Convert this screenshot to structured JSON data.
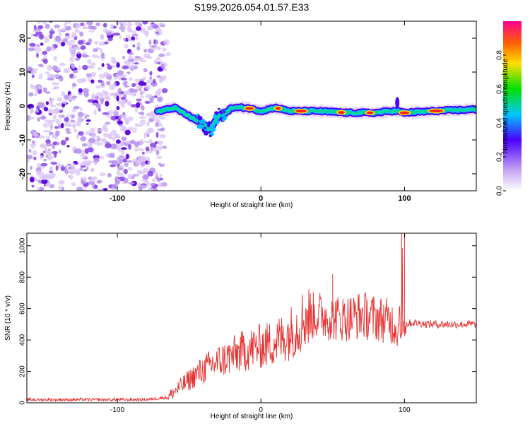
{
  "chart_data": [
    {
      "type": "heatmap",
      "title": "S199.2026.054.01.57.E33",
      "xlabel": "Height of straight line (km)",
      "ylabel": "Frequency (Hz)",
      "xlim": [
        -163,
        150
      ],
      "ylim": [
        -25,
        25
      ],
      "xticks": [
        -100,
        0,
        100
      ],
      "yticks": [
        -20,
        -10,
        0,
        10,
        20
      ],
      "noise_region_x": [
        -163,
        -70
      ],
      "ridge": {
        "x": [
          -70,
          -60,
          -50,
          -40,
          -35,
          -30,
          -25,
          -20,
          -10,
          0,
          10,
          20,
          40,
          60,
          80,
          90,
          95,
          100,
          120,
          150
        ],
        "freq": [
          -1.5,
          -0.5,
          -3,
          -5.5,
          -7,
          -3,
          -2,
          -0.5,
          -0.5,
          -1.5,
          -0.5,
          -1.5,
          -1.5,
          -2,
          -2,
          -1.5,
          -1.5,
          -2,
          -1.5,
          -1
        ]
      },
      "colorbar": {
        "label": "Normalized spectral amplitude",
        "ticks": [
          "0.0",
          "0.2",
          "0.4",
          "0.6",
          "0.8"
        ],
        "range": [
          0,
          1
        ]
      }
    },
    {
      "type": "line",
      "xlabel": "Height of straight line (km)",
      "ylabel": "SNR (10 * v/v)",
      "xlim": [
        -163,
        150
      ],
      "ylim": [
        0,
        1080
      ],
      "xticks": [
        -100,
        0,
        100
      ],
      "yticks": [
        0,
        200,
        400,
        600,
        800,
        1000
      ],
      "color": "#e83030",
      "series": [
        {
          "name": "SNR",
          "x": [
            -163,
            -140,
            -120,
            -100,
            -80,
            -65,
            -55,
            -45,
            -35,
            -25,
            -15,
            -5,
            5,
            15,
            25,
            30,
            40,
            50,
            60,
            70,
            80,
            90,
            95,
            97,
            100,
            105,
            120,
            140,
            150
          ],
          "y": [
            20,
            20,
            20,
            20,
            20,
            35,
            110,
            180,
            240,
            280,
            320,
            350,
            370,
            410,
            480,
            540,
            560,
            540,
            540,
            560,
            540,
            520,
            480,
            400,
            500,
            510,
            500,
            500,
            500
          ]
        }
      ],
      "peaks": [
        {
          "x": 50,
          "y": 820
        },
        {
          "x": 98,
          "y": 1080
        },
        {
          "x": 100,
          "y": 1080
        }
      ]
    }
  ]
}
